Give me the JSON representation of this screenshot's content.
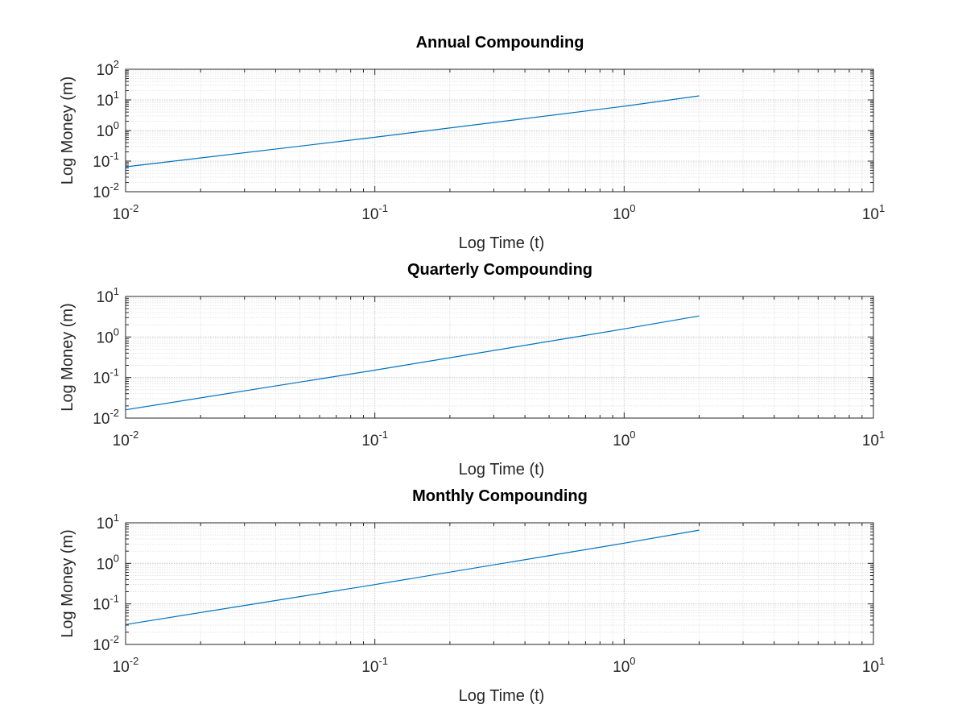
{
  "chart_data": [
    {
      "type": "line",
      "title": "Annual Compounding",
      "xlabel": "Log Time (t)",
      "ylabel": "Log Money (m)",
      "xscale": "log",
      "yscale": "log",
      "xlim": [
        0.01,
        10
      ],
      "ylim": [
        0.01,
        100
      ],
      "grid": true,
      "x_ticks": [
        "10^-2",
        "10^-1",
        "10^0",
        "10^1"
      ],
      "y_ticks": [
        "10^-2",
        "10^-1",
        "10^0",
        "10^1",
        "10^2"
      ],
      "series": [
        {
          "color": "#0072bd",
          "x": [
            0.01,
            0.1,
            1,
            2
          ],
          "y": [
            0.065,
            0.6,
            6.2,
            13.5
          ]
        }
      ]
    },
    {
      "type": "line",
      "title": "Quarterly Compounding",
      "xlabel": "Log Time (t)",
      "ylabel": "Log Money (m)",
      "xscale": "log",
      "yscale": "log",
      "xlim": [
        0.01,
        10
      ],
      "ylim": [
        0.01,
        10
      ],
      "grid": true,
      "x_ticks": [
        "10^-2",
        "10^-1",
        "10^0",
        "10^1"
      ],
      "y_ticks": [
        "10^-2",
        "10^-1",
        "10^0",
        "10^1"
      ],
      "series": [
        {
          "color": "#0072bd",
          "x": [
            0.01,
            0.1,
            1,
            2
          ],
          "y": [
            0.016,
            0.152,
            1.58,
            3.3
          ]
        }
      ]
    },
    {
      "type": "line",
      "title": "Monthly Compounding",
      "xlabel": "Log Time (t)",
      "ylabel": "Log Money (m)",
      "xscale": "log",
      "yscale": "log",
      "xlim": [
        0.01,
        10
      ],
      "ylim": [
        0.01,
        10
      ],
      "grid": true,
      "x_ticks": [
        "10^-2",
        "10^-1",
        "10^0",
        "10^1"
      ],
      "y_ticks": [
        "10^-2",
        "10^-1",
        "10^0",
        "10^1"
      ],
      "series": [
        {
          "color": "#0072bd",
          "x": [
            0.01,
            0.1,
            1,
            2
          ],
          "y": [
            0.031,
            0.3,
            3.15,
            6.6
          ]
        }
      ]
    }
  ]
}
